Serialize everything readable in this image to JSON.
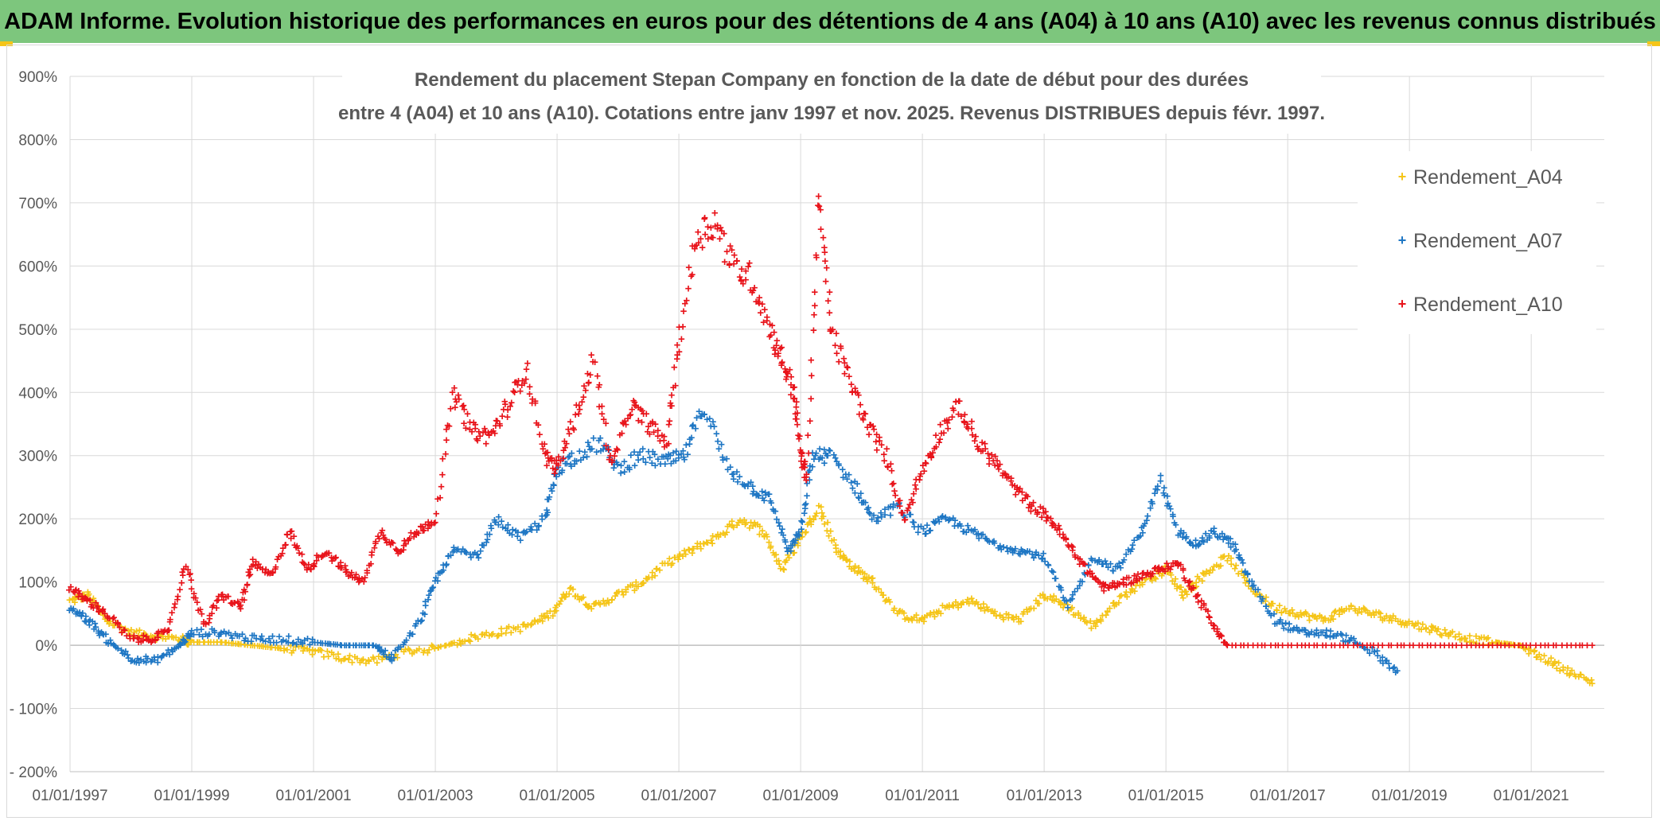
{
  "banner": {
    "text": "ADAM Informe. Evolution historique des performances en euros pour des détentions de 4 ans (A04) à 10 ans (A10) avec les revenus connus distribués"
  },
  "chart_data": {
    "type": "scatter",
    "title_lines": [
      "Rendement du placement Stepan Company en fonction de la date de début pour des durées",
      "entre 4 (A04) et 10 ans (A10). Cotations entre janv 1997 et nov. 2025. Revenus DISTRIBUES depuis févr. 1997."
    ],
    "xlabel": "",
    "ylabel": "",
    "xlim": [
      1997.0,
      2022.2
    ],
    "ylim": [
      -200,
      900
    ],
    "y_ticks": [
      -200,
      -100,
      0,
      100,
      200,
      300,
      400,
      500,
      600,
      700,
      800,
      900
    ],
    "y_tick_labels": [
      "- 200%",
      "- 100%",
      "0%",
      "100%",
      "200%",
      "300%",
      "400%",
      "500%",
      "600%",
      "700%",
      "800%",
      "900%"
    ],
    "x_ticks": [
      1997,
      1999,
      2001,
      2003,
      2005,
      2007,
      2009,
      2011,
      2013,
      2015,
      2017,
      2019,
      2021
    ],
    "x_tick_labels": [
      "01/01/1997",
      "01/01/1999",
      "01/01/2001",
      "01/01/2003",
      "01/01/2005",
      "01/01/2007",
      "01/01/2009",
      "01/01/2011",
      "01/01/2013",
      "01/01/2015",
      "01/01/2017",
      "01/01/2019",
      "01/01/2021"
    ],
    "marker": "+",
    "legend_position": "right",
    "series": [
      {
        "name": "Rendement_A04",
        "color": "#f5c518",
        "x": [
          1997.0,
          1997.3,
          1997.6,
          1998.0,
          1998.4,
          1998.8,
          1999.0,
          1999.5,
          2000.0,
          2000.5,
          2001.0,
          2001.5,
          2002.0,
          2002.5,
          2003.0,
          2003.5,
          2004.0,
          2004.5,
          2004.9,
          2005.2,
          2005.6,
          2006.0,
          2006.4,
          2006.8,
          2007.2,
          2007.6,
          2008.0,
          2008.4,
          2008.7,
          2009.0,
          2009.3,
          2009.6,
          2009.9,
          2010.2,
          2010.6,
          2011.0,
          2011.4,
          2011.8,
          2012.2,
          2012.6,
          2013.0,
          2013.4,
          2013.8,
          2014.2,
          2014.6,
          2015.0,
          2015.3,
          2015.6,
          2016.0,
          2016.4,
          2016.8,
          2017.2,
          2017.6,
          2018.0,
          2018.4,
          2018.8,
          2019.2,
          2019.6,
          2020.0,
          2020.4,
          2020.8,
          2021.2,
          2021.6,
          2022.0
        ],
        "y": [
          70,
          80,
          40,
          20,
          15,
          10,
          5,
          5,
          0,
          -5,
          -10,
          -20,
          -25,
          -10,
          -5,
          10,
          20,
          30,
          50,
          90,
          60,
          80,
          100,
          130,
          150,
          170,
          200,
          180,
          120,
          170,
          220,
          150,
          120,
          100,
          50,
          40,
          60,
          70,
          50,
          40,
          80,
          60,
          30,
          70,
          100,
          120,
          80,
          110,
          140,
          90,
          60,
          50,
          40,
          60,
          50,
          40,
          30,
          20,
          10,
          5,
          0,
          -20,
          -40,
          -60
        ]
      },
      {
        "name": "Rendement_A07",
        "color": "#1f77c4",
        "x": [
          1997.0,
          1997.3,
          1997.6,
          1998.0,
          1998.4,
          1998.8,
          1999.0,
          1999.5,
          2000.0,
          2000.5,
          2001.0,
          2001.5,
          2002.0,
          2002.3,
          2002.7,
          2003.0,
          2003.3,
          2003.7,
          2004.0,
          2004.4,
          2004.8,
          2005.0,
          2005.3,
          2005.7,
          2006.0,
          2006.4,
          2006.8,
          2007.1,
          2007.4,
          2007.8,
          2008.2,
          2008.5,
          2008.8,
          2009.0,
          2009.2,
          2009.5,
          2009.9,
          2010.2,
          2010.6,
          2011.0,
          2011.4,
          2011.8,
          2012.2,
          2012.6,
          2013.0,
          2013.4,
          2013.8,
          2014.2,
          2014.6,
          2014.9,
          2015.2,
          2015.5,
          2015.8,
          2016.1,
          2016.4,
          2016.8,
          2017.2,
          2017.6,
          2018.0,
          2018.4,
          2018.8
        ],
        "y": [
          60,
          40,
          10,
          -20,
          -25,
          0,
          20,
          20,
          10,
          10,
          5,
          0,
          0,
          -20,
          30,
          100,
          150,
          140,
          200,
          170,
          200,
          280,
          300,
          320,
          280,
          300,
          290,
          300,
          380,
          280,
          250,
          230,
          150,
          180,
          300,
          300,
          250,
          200,
          220,
          180,
          200,
          180,
          160,
          150,
          140,
          60,
          140,
          120,
          180,
          260,
          180,
          160,
          180,
          160,
          100,
          40,
          20,
          20,
          10,
          -10,
          -40
        ]
      },
      {
        "name": "Rendement_A10",
        "color": "#e8141b",
        "x": [
          1997.0,
          1997.3,
          1997.6,
          1998.0,
          1998.3,
          1998.6,
          1998.9,
          1999.2,
          1999.5,
          1999.8,
          2000.0,
          2000.3,
          2000.6,
          2000.9,
          2001.2,
          2001.5,
          2001.8,
          2002.1,
          2002.4,
          2002.7,
          2003.0,
          2003.3,
          2003.6,
          2003.9,
          2004.2,
          2004.5,
          2004.8,
          2005.0,
          2005.3,
          2005.6,
          2005.9,
          2006.2,
          2006.5,
          2006.8,
          2007.0,
          2007.3,
          2007.6,
          2007.9,
          2008.2,
          2008.5,
          2008.7,
          2008.9,
          2009.0,
          2009.1,
          2009.3,
          2009.5,
          2009.8,
          2010.1,
          2010.4,
          2010.7,
          2011.0,
          2011.3,
          2011.6,
          2011.9,
          2012.2,
          2012.5,
          2012.8,
          2013.1,
          2013.4,
          2013.7,
          2014.0,
          2014.3,
          2014.6,
          2014.9,
          2015.2,
          2015.5,
          2015.8,
          2016.0,
          2017.0,
          2018.0,
          2019.0,
          2020.0,
          2021.0,
          2022.0
        ],
        "y": [
          90,
          70,
          50,
          10,
          10,
          20,
          130,
          30,
          80,
          60,
          130,
          110,
          180,
          120,
          150,
          120,
          100,
          180,
          150,
          180,
          200,
          400,
          340,
          330,
          380,
          440,
          300,
          280,
          360,
          450,
          280,
          380,
          350,
          320,
          480,
          650,
          670,
          600,
          580,
          500,
          450,
          400,
          300,
          270,
          700,
          500,
          420,
          350,
          300,
          200,
          280,
          340,
          380,
          320,
          290,
          250,
          220,
          200,
          160,
          120,
          90,
          100,
          110,
          120,
          130,
          80,
          30,
          0,
          0,
          0,
          0,
          0,
          0,
          0
        ]
      }
    ]
  }
}
